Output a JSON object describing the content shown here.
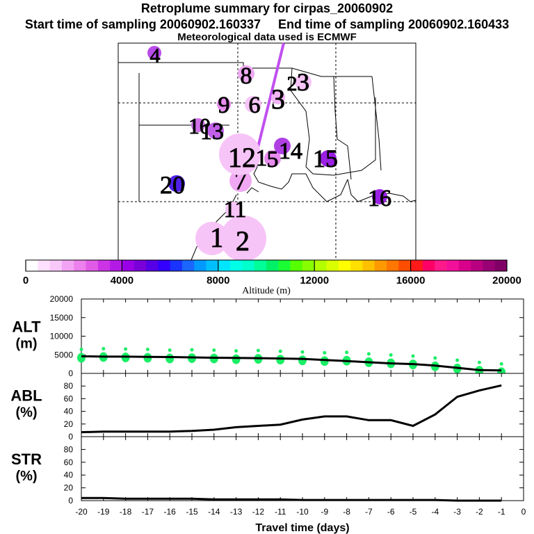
{
  "header": {
    "title": "Retroplume summary for cirpas_20060902",
    "start_label": "Start time of sampling 20060902.160337",
    "end_label": "End time of sampling 20060902.160433",
    "met_label": "Meteorological data used is ECMWF"
  },
  "colorbar": {
    "ticks": [
      "0",
      "4000",
      "8000",
      "12000",
      "16000",
      "20000"
    ],
    "label": "Altitude (m)",
    "colors": [
      "#ffffff",
      "#fde0fd",
      "#f8c8f8",
      "#f3a3f3",
      "#ec80ec",
      "#e05ce6",
      "#cc33e6",
      "#b31ae6",
      "#9900e6",
      "#7a00d9",
      "#5500e6",
      "#3300ff",
      "#1a33ff",
      "#1a66ff",
      "#0099ff",
      "#00bfff",
      "#00e6ff",
      "#00ffe6",
      "#00ffcc",
      "#00ff99",
      "#00f066",
      "#1aff33",
      "#55ff00",
      "#88ff00",
      "#b3ff00",
      "#d9ff00",
      "#ffff00",
      "#ffe000",
      "#ffc000",
      "#ff9900",
      "#ff7700",
      "#ff4d00",
      "#ff1a1a",
      "#ff0066",
      "#ff1a8c",
      "#f0109a",
      "#d9008c",
      "#b80080",
      "#990073",
      "#800066"
    ]
  },
  "map_markers": [
    {
      "label": "1",
      "color": "#f7c4f7"
    },
    {
      "label": "2",
      "color": "#f7c4f7"
    },
    {
      "label": "3",
      "color": "#f7c4f7"
    },
    {
      "label": "4",
      "color": "#b84ce8"
    },
    {
      "label": "5",
      "color": "#e88cf0"
    },
    {
      "label": "6",
      "color": "#f7c4f7"
    },
    {
      "label": "7",
      "color": "#f0a8f2"
    },
    {
      "label": "8",
      "color": "#f0a8f2"
    },
    {
      "label": "9",
      "color": "#e88cf0"
    },
    {
      "label": "10",
      "color": "#d070e8"
    },
    {
      "label": "11",
      "color": "#f7c4f7"
    },
    {
      "label": "12",
      "color": "#f7c4f7"
    },
    {
      "label": "13",
      "color": "#c060e8"
    },
    {
      "label": "14",
      "color": "#b040e4"
    },
    {
      "label": "15",
      "color": "#9a20e4"
    },
    {
      "label": "16",
      "color": "#9a20e4"
    },
    {
      "label": "20",
      "color": "#5020e8"
    },
    {
      "label": "3",
      "color": "#f2b4f4"
    },
    {
      "label": "2",
      "color": "#f2b4f4"
    },
    {
      "label": "1",
      "color": "#f7c4f7"
    }
  ],
  "chart_data": [
    {
      "type": "scatter",
      "name": "altitude",
      "ylabel": "ALT\n(m)",
      "ylabel_lines": [
        "ALT",
        "(m)"
      ],
      "ylim": [
        0,
        20000
      ],
      "yticks": [
        "20000",
        "15000",
        "10000",
        "5000",
        "0"
      ],
      "yticks_values": [
        20000,
        15000,
        10000,
        5000,
        0
      ],
      "xlim": [
        -20,
        0
      ],
      "points_color": "#1aee66",
      "line_x": [
        -20,
        -19,
        -18,
        -17,
        -16,
        -15,
        -14,
        -13,
        -12,
        -11,
        -10,
        -9,
        -8,
        -7,
        -6,
        -5,
        -4,
        -3,
        -2,
        -1
      ],
      "line_y": [
        4600,
        4500,
        4500,
        4450,
        4400,
        4300,
        4200,
        4150,
        4100,
        4000,
        3900,
        3600,
        3300,
        3000,
        2700,
        2500,
        2100,
        1500,
        900,
        800
      ],
      "points_x": [
        -20,
        -19,
        -18,
        -17,
        -16,
        -15,
        -14,
        -13,
        -12,
        -11,
        -10,
        -9,
        -8,
        -7,
        -6,
        -5,
        -4,
        -3,
        -2,
        -1
      ],
      "points_y": [
        4200,
        4400,
        4300,
        4200,
        4000,
        4100,
        4000,
        3800,
        3900,
        3700,
        3500,
        3300,
        3400,
        3000,
        2700,
        2400,
        1900,
        1300,
        700,
        300
      ]
    },
    {
      "type": "line",
      "name": "abl",
      "ylabel_lines": [
        "ABL",
        "(%)"
      ],
      "ylim": [
        0,
        100
      ],
      "yticks": [
        "80",
        "60",
        "40",
        "20",
        "0"
      ],
      "yticks_values": [
        80,
        60,
        40,
        20,
        0
      ],
      "xlim": [
        -20,
        0
      ],
      "x": [
        -20,
        -19,
        -18,
        -17,
        -16,
        -15,
        -14,
        -13,
        -12,
        -11,
        -10,
        -9,
        -8,
        -7,
        -6,
        -5,
        -4,
        -3,
        -2,
        -1
      ],
      "y": [
        7,
        8,
        8,
        8,
        8,
        9,
        11,
        15,
        17,
        19,
        27,
        32,
        32,
        26,
        26,
        17,
        35,
        63,
        73,
        81
      ]
    },
    {
      "type": "line",
      "name": "str",
      "ylabel_lines": [
        "STR",
        "(%)"
      ],
      "ylim": [
        0,
        100
      ],
      "yticks": [
        "80",
        "60",
        "40",
        "20",
        "0"
      ],
      "yticks_values": [
        80,
        60,
        40,
        20,
        0
      ],
      "xlim": [
        -20,
        0
      ],
      "x": [
        -20,
        -19,
        -18,
        -17,
        -16,
        -15,
        -14,
        -13,
        -12,
        -11,
        -10,
        -9,
        -8,
        -7,
        -6,
        -5,
        -4,
        -3,
        -2,
        -1
      ],
      "y": [
        4,
        4,
        3,
        3,
        3,
        3,
        2,
        2,
        2,
        2,
        1,
        1,
        1,
        1,
        1,
        1,
        1,
        0,
        0,
        0
      ],
      "xticks": [
        "-20",
        "-19",
        "-18",
        "-17",
        "-16",
        "-15",
        "-14",
        "-13",
        "-12",
        "-11",
        "-10",
        "-9",
        "-8",
        "-7",
        "-6",
        "-5",
        "-4",
        "-3",
        "-2",
        "-1",
        "0"
      ],
      "xticks_values": [
        -20,
        -19,
        -18,
        -17,
        -16,
        -15,
        -14,
        -13,
        -12,
        -11,
        -10,
        -9,
        -8,
        -7,
        -6,
        -5,
        -4,
        -3,
        -2,
        -1,
        0
      ],
      "xlabel": "Travel time (days)"
    }
  ]
}
